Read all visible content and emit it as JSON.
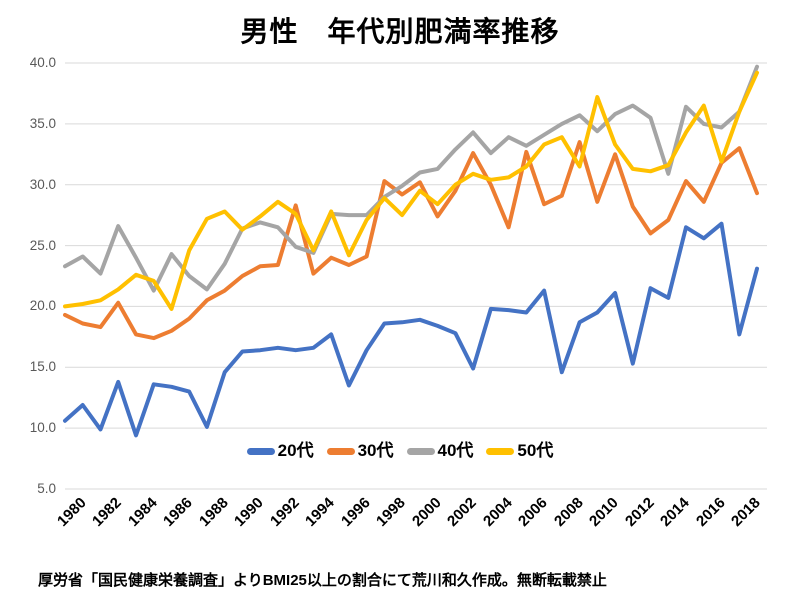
{
  "page": {
    "title": "男性　年代別肥満率推移",
    "footer": "厚労省「国民健康栄養調査」よりBMI25以上の割合にて荒川和久作成。無断転載禁止"
  },
  "colors": {
    "background": "#FFFFFF",
    "grid": "#D9D9D9",
    "axis_tick_text": "#595959",
    "text": "#000000"
  },
  "chart_data": {
    "type": "line",
    "title": "男性　年代別肥満率推移",
    "xlabel": "",
    "ylabel": "",
    "ylim": [
      5.0,
      40.0
    ],
    "y_ticks": [
      "40.0",
      "35.0",
      "30.0",
      "25.0",
      "20.0",
      "15.0",
      "10.0",
      "5.0"
    ],
    "x": [
      1980,
      1981,
      1982,
      1983,
      1984,
      1985,
      1986,
      1987,
      1988,
      1989,
      1990,
      1991,
      1992,
      1993,
      1994,
      1995,
      1996,
      1997,
      1998,
      1999,
      2000,
      2001,
      2002,
      2003,
      2004,
      2005,
      2006,
      2007,
      2008,
      2009,
      2010,
      2011,
      2012,
      2013,
      2014,
      2015,
      2016,
      2017,
      2018,
      2019
    ],
    "x_tick_labels": [
      "1980",
      "1982",
      "1984",
      "1986",
      "1988",
      "1990",
      "1992",
      "1994",
      "1996",
      "1998",
      "2000",
      "2002",
      "2004",
      "2006",
      "2008",
      "2010",
      "2012",
      "2014",
      "2016",
      "2018"
    ],
    "grid": "horizontal-only",
    "legend_position": "bottom-center-inside",
    "series": [
      {
        "name": "20代",
        "color": "#4472C4",
        "values": [
          10.6,
          11.9,
          9.9,
          13.8,
          9.4,
          13.6,
          13.4,
          13.0,
          10.1,
          14.6,
          16.3,
          16.4,
          16.6,
          16.4,
          16.6,
          17.7,
          13.5,
          16.4,
          18.6,
          18.7,
          18.9,
          18.4,
          17.8,
          14.9,
          19.8,
          19.7,
          19.5,
          21.3,
          14.6,
          18.7,
          19.5,
          21.1,
          15.3,
          21.5,
          20.7,
          26.5,
          25.6,
          26.8,
          17.7,
          23.1
        ]
      },
      {
        "name": "30代",
        "color": "#ED7D31",
        "values": [
          19.3,
          18.6,
          18.3,
          20.3,
          17.7,
          17.4,
          18.0,
          19.0,
          20.5,
          21.3,
          22.5,
          23.3,
          23.4,
          28.3,
          22.7,
          24.0,
          23.4,
          24.1,
          30.3,
          29.2,
          30.2,
          27.4,
          29.5,
          32.6,
          30.0,
          26.5,
          32.7,
          28.4,
          29.1,
          33.5,
          28.6,
          32.5,
          28.2,
          26.0,
          27.1,
          30.3,
          28.6,
          31.8,
          33.0,
          29.3
        ]
      },
      {
        "name": "40代",
        "color": "#A5A5A5",
        "values": [
          23.3,
          24.1,
          22.7,
          26.6,
          24.0,
          21.3,
          24.3,
          22.5,
          21.4,
          23.5,
          26.4,
          26.9,
          26.5,
          24.9,
          24.4,
          27.6,
          27.5,
          27.5,
          29.0,
          29.9,
          31.0,
          31.3,
          32.9,
          34.3,
          32.6,
          33.9,
          33.2,
          34.1,
          35.0,
          35.7,
          34.4,
          35.8,
          36.5,
          35.5,
          30.9,
          36.4,
          35.0,
          34.7,
          36.0,
          39.7
        ]
      },
      {
        "name": "50代",
        "color": "#FFC000",
        "values": [
          20.0,
          20.2,
          20.5,
          21.4,
          22.6,
          22.1,
          19.8,
          24.6,
          27.2,
          27.8,
          26.3,
          27.4,
          28.6,
          27.6,
          24.6,
          27.8,
          24.2,
          27.1,
          28.9,
          27.5,
          29.5,
          28.4,
          30.0,
          30.9,
          30.4,
          30.6,
          31.5,
          33.3,
          33.9,
          31.5,
          37.2,
          33.3,
          31.3,
          31.1,
          31.6,
          34.3,
          36.5,
          31.9,
          36.0,
          39.2
        ]
      }
    ]
  }
}
